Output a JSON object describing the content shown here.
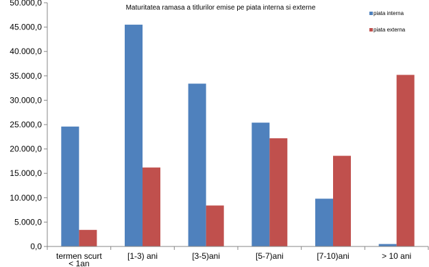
{
  "chart_data": {
    "type": "bar",
    "title": "Maturitatea ramasa a titlurilor emise pe piata interna si externe",
    "categories": [
      "termen scurt < 1an",
      "[1-3) ani",
      "[3-5)ani",
      "[5-7)ani",
      "[7-10)ani",
      "> 10 ani"
    ],
    "series": [
      {
        "name": "piata interna",
        "color": "#4F81BD",
        "values": [
          24600,
          45500,
          33400,
          25400,
          9800,
          500
        ]
      },
      {
        "name": "piata externa",
        "color": "#C0504D",
        "values": [
          3400,
          16200,
          8400,
          22200,
          18600,
          35200
        ]
      }
    ],
    "ylim": [
      0,
      50000
    ],
    "yticks": [
      "0,0",
      "5.000,0",
      "10.000,0",
      "15.000,0",
      "20.000,0",
      "25.000,0",
      "30.000,0",
      "35.000,0",
      "40.000,0",
      "45.000,0",
      "50.000,0"
    ],
    "grid": false,
    "legend": "top-right",
    "xlabel": "",
    "ylabel": ""
  }
}
